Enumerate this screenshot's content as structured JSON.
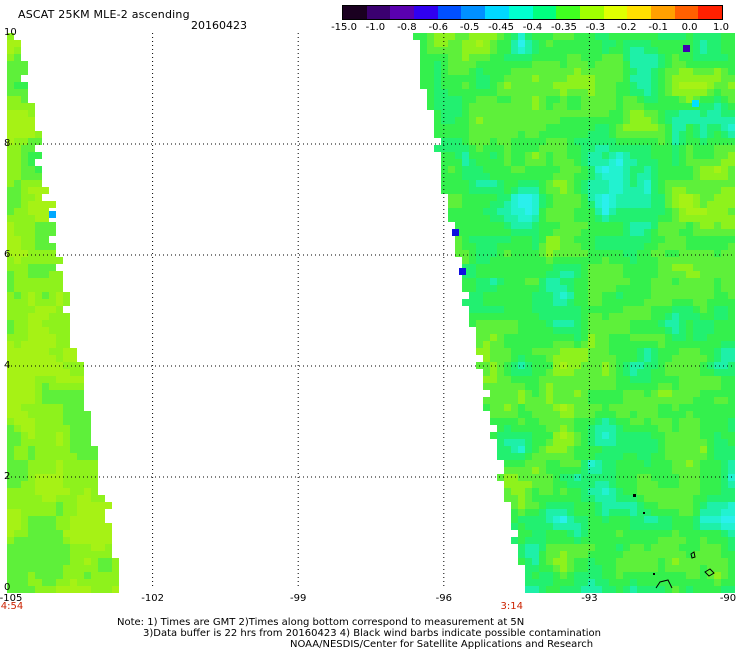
{
  "header": {
    "title": "ASCAT 25KM MLE-2 ascending",
    "date": "20160423"
  },
  "colorbar": {
    "labels": [
      "-15.0",
      "-1.0",
      "-0.8",
      "-0.6",
      "-0.5",
      "-0.45",
      "-0.4",
      "-0.35",
      "-0.3",
      "-0.2",
      "-0.1",
      "0.0",
      "1.0"
    ],
    "colors": [
      "#1a0020",
      "#3b0070",
      "#5a00b0",
      "#3000f0",
      "#0050ff",
      "#0090ff",
      "#00d8ff",
      "#00ffd0",
      "#00ff80",
      "#40ff20",
      "#a0ff00",
      "#e0ff00",
      "#ffe000",
      "#ffa000",
      "#ff6000",
      "#ff2000"
    ]
  },
  "map": {
    "x_ticks": [
      "-105",
      "-102",
      "-99",
      "-96",
      "-93",
      "-90"
    ],
    "y_ticks": [
      "10",
      "8",
      "6",
      "4",
      "2",
      "0"
    ],
    "times": [
      {
        "label": "4:54",
        "lon": -105
      },
      {
        "label": "3:14",
        "lon": -94.6
      }
    ],
    "lon_range": [
      -105,
      -90
    ],
    "lat_range": [
      0,
      10
    ],
    "grid": "dotted"
  },
  "notes": {
    "line1": "Note: 1) Times are GMT 2)Times along bottom correspond to measurement at 5N",
    "line2": "3)Data buffer is 22 hrs from 20160423 4) Black wind barbs indicate possible contamination",
    "line3": "NOAA/NESDIS/Center for Satellite Applications and Research"
  }
}
